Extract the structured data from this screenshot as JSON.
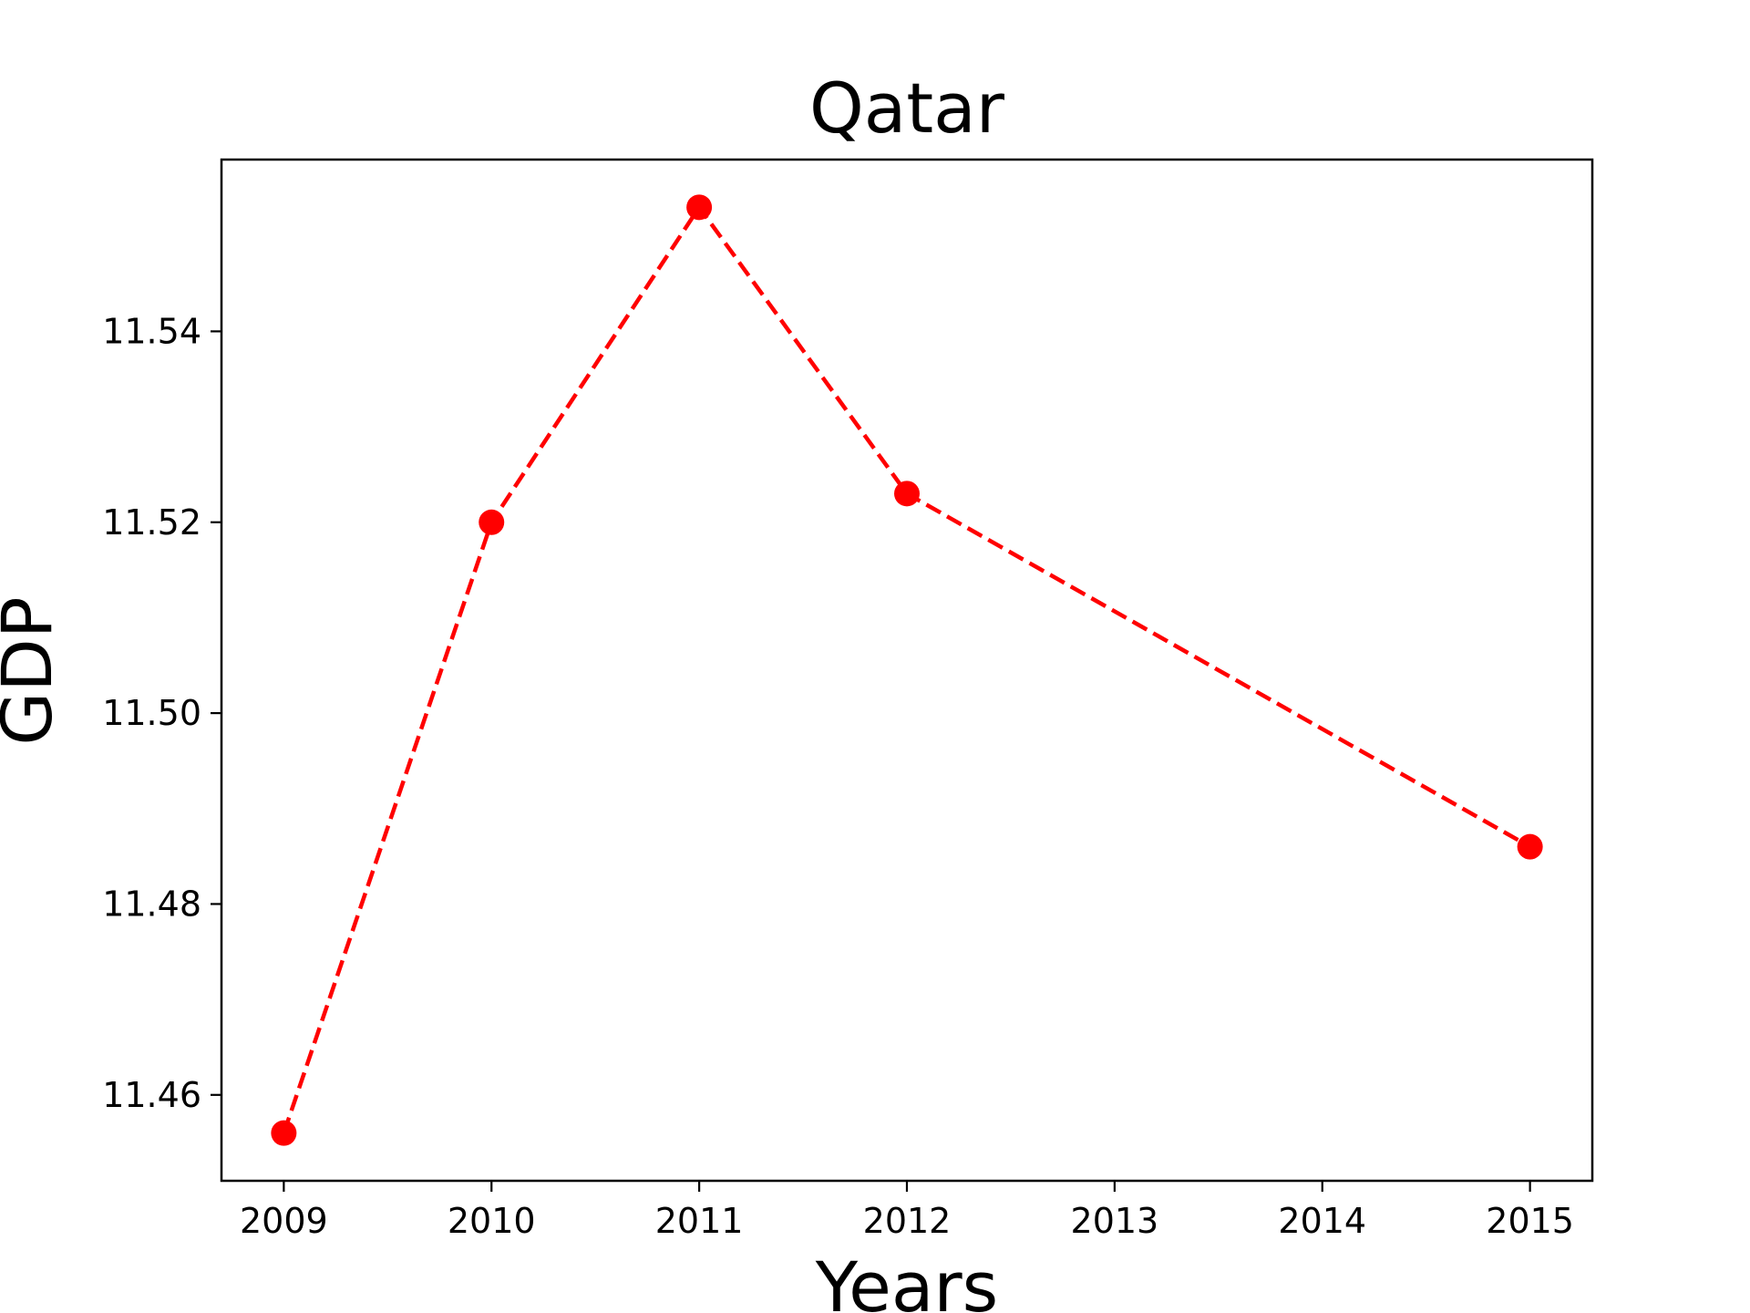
{
  "chart_data": {
    "type": "line",
    "title": "Qatar",
    "xlabel": "Years",
    "ylabel": "GDP",
    "x": [
      2009,
      2010,
      2011,
      2012,
      2015
    ],
    "series": [
      {
        "values": [
          11.456,
          11.52,
          11.553,
          11.523,
          11.486
        ],
        "color": "#ff0000",
        "line_style": "dashed",
        "marker": "circle"
      }
    ],
    "xlim": [
      2008.7,
      2015.3
    ],
    "ylim": [
      11.451,
      11.558
    ],
    "xticks": [
      2009,
      2010,
      2011,
      2012,
      2013,
      2014,
      2015
    ],
    "xtick_labels": [
      "2009",
      "2010",
      "2011",
      "2012",
      "2013",
      "2014",
      "2015"
    ],
    "yticks": [
      11.46,
      11.48,
      11.5,
      11.52,
      11.54
    ],
    "ytick_labels": [
      "11.46",
      "11.48",
      "11.50",
      "11.52",
      "11.54"
    ],
    "grid": false,
    "legend": "none"
  }
}
